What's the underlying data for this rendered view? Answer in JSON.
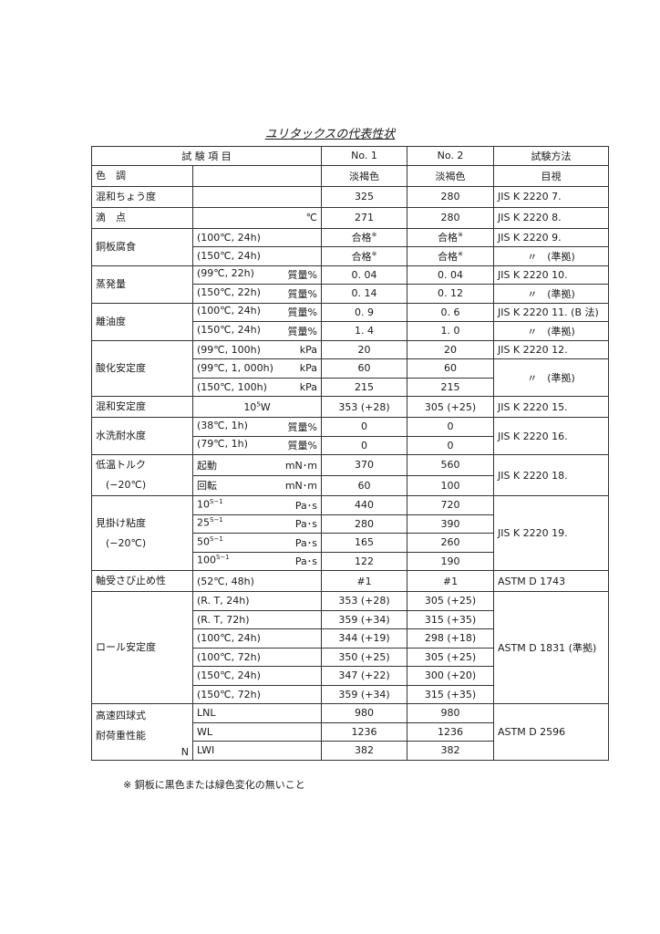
{
  "title": "ユリタックスの代表性状",
  "header": {
    "item": "試 験 項 目",
    "no1": "No. 1",
    "no2": "No. 2",
    "method": "試験方法"
  },
  "groups": [
    {
      "label": [
        "色　調"
      ],
      "rows": [
        {
          "param": "",
          "unit": "",
          "no1": "淡褐色",
          "no2": "淡褐色",
          "method": "目視",
          "method_span": 1,
          "method_align": "c"
        }
      ]
    },
    {
      "label": [
        "混和ちょう度"
      ],
      "rows": [
        {
          "param": "",
          "unit": "",
          "no1": "325",
          "no2": "280",
          "method": "JIS K 2220 7.",
          "method_span": 1
        }
      ]
    },
    {
      "label": [
        "滴　点"
      ],
      "rows": [
        {
          "param": "",
          "unit": "℃",
          "no1": "271",
          "no2": "280",
          "method": "JIS K 2220 8.",
          "method_span": 1
        }
      ]
    },
    {
      "label": [
        "銅板腐食"
      ],
      "rows": [
        {
          "param": "(100℃, 24h)",
          "unit": "",
          "no1": "合格",
          "no1_sup": "※",
          "no2": "合格",
          "no2_sup": "※",
          "method": "JIS K 2220 9.",
          "method_span": 1
        },
        {
          "param": "(150℃, 24h)",
          "unit": "",
          "no1": "合格",
          "no1_sup": "※",
          "no2": "合格",
          "no2_sup": "※",
          "method": "〃　(準拠)",
          "method_span": 1,
          "method_align": "c"
        }
      ]
    },
    {
      "label": [
        "蒸発量"
      ],
      "rows": [
        {
          "param": "(99℃, 22h)",
          "unit": "質量%",
          "no1": "0. 04",
          "no2": "0. 04",
          "method": "JIS K 2220 10.",
          "method_span": 1
        },
        {
          "param": "(150℃, 22h)",
          "unit": "質量%",
          "no1": "0. 14",
          "no2": "0. 12",
          "method": "〃　(準拠)",
          "method_span": 1,
          "method_align": "c"
        }
      ]
    },
    {
      "label": [
        "離油度"
      ],
      "rows": [
        {
          "param": "(100℃, 24h)",
          "unit": "質量%",
          "no1": "0. 9",
          "no2": "0. 6",
          "method": "JIS K 2220 11. (B 法)",
          "method_span": 1
        },
        {
          "param": "(150℃, 24h)",
          "unit": "質量%",
          "no1": "1. 4",
          "no2": "1. 0",
          "method": "〃　(準拠)",
          "method_span": 1,
          "method_align": "c"
        }
      ]
    },
    {
      "label": [
        "酸化安定度"
      ],
      "rows": [
        {
          "param": "(99℃, 100h)",
          "unit": "kPa",
          "no1": "20",
          "no2": "20",
          "method": "JIS K 2220 12.",
          "method_span": 1
        },
        {
          "param": "(99℃, 1, 000h)",
          "unit": "kPa",
          "no1": "60",
          "no2": "60",
          "method": "〃　(準拠)",
          "method_span": 2,
          "method_align": "c"
        },
        {
          "param": "(150℃, 100h)",
          "unit": "kPa",
          "no1": "215",
          "no2": "215",
          "method_span": 0
        }
      ]
    },
    {
      "label": [
        "混和安定度"
      ],
      "rows": [
        {
          "param": "10",
          "param_sup": "5",
          "param_after": "W",
          "param_center": true,
          "unit": "",
          "no1": "353 (+28)",
          "no2": "305 (+25)",
          "method": "JIS K 2220 15.",
          "method_span": 1
        }
      ]
    },
    {
      "label": [
        "水洗耐水度"
      ],
      "rows": [
        {
          "param": "(38℃, 1h)",
          "unit": "質量%",
          "no1": "0",
          "no2": "0",
          "method": "JIS K 2220 16.",
          "method_span": 2
        },
        {
          "param": "(79℃, 1h)",
          "unit": "質量%",
          "no1": "0",
          "no2": "0",
          "method_span": 0
        }
      ]
    },
    {
      "label": [
        "低温トルク",
        "　(−20℃)"
      ],
      "rows": [
        {
          "param": "起動",
          "unit": "mN･m",
          "no1": "370",
          "no2": "560",
          "method": "JIS K 2220 18.",
          "method_span": 2
        },
        {
          "param": "回転",
          "unit": "mN･m",
          "no1": "60",
          "no2": "100",
          "method_span": 0
        }
      ]
    },
    {
      "label": [
        "見掛け粘度",
        "　(−20℃)"
      ],
      "rows": [
        {
          "param": "10",
          "param_sup": "S−1",
          "unit": "Pa･s",
          "no1": "440",
          "no2": "720",
          "method": "JIS K 2220 19.",
          "method_span": 4
        },
        {
          "param": "25",
          "param_sup": "S−1",
          "unit": "Pa･s",
          "no1": "280",
          "no2": "390",
          "method_span": 0
        },
        {
          "param": "50",
          "param_sup": "S−1",
          "unit": "Pa･s",
          "no1": "165",
          "no2": "260",
          "method_span": 0
        },
        {
          "param": "100",
          "param_sup": "S−1",
          "unit": "Pa･s",
          "no1": "122",
          "no2": "190",
          "method_span": 0
        }
      ]
    },
    {
      "label": [
        "軸受さび止め性"
      ],
      "rows": [
        {
          "param": "(52℃, 48h)",
          "unit": "",
          "no1": "#1",
          "no2": "#1",
          "method": "ASTM D 1743",
          "method_span": 1
        }
      ]
    },
    {
      "label": [
        "ロール安定度"
      ],
      "rows": [
        {
          "param": "(R. T, 24h)",
          "unit": "",
          "no1": "353 (+28)",
          "no2": "305 (+25)",
          "method": "ASTM D 1831 (準拠)",
          "method_span": 6
        },
        {
          "param": "(R. T, 72h)",
          "unit": "",
          "no1": "359 (+34)",
          "no2": "315 (+35)",
          "method_span": 0
        },
        {
          "param": "(100℃, 24h)",
          "unit": "",
          "no1": "344 (+19)",
          "no2": "298 (+18)",
          "method_span": 0
        },
        {
          "param": "(100℃, 72h)",
          "unit": "",
          "no1": "350 (+25)",
          "no2": "305 (+25)",
          "method_span": 0
        },
        {
          "param": "(150℃, 24h)",
          "unit": "",
          "no1": "347 (+22)",
          "no2": "300 (+20)",
          "method_span": 0
        },
        {
          "param": "(150℃, 72h)",
          "unit": "",
          "no1": "359 (+34)",
          "no2": "315 (+35)",
          "method_span": 0
        }
      ]
    },
    {
      "label": [
        "高速四球式",
        "耐荷重性能"
      ],
      "label_note": "N",
      "rows": [
        {
          "param": "LNL",
          "unit": "",
          "no1": "980",
          "no2": "980",
          "method": "ASTM D 2596",
          "method_span": 3
        },
        {
          "param": "WL",
          "unit": "",
          "no1": "1236",
          "no2": "1236",
          "method_span": 0
        },
        {
          "param": "LWI",
          "unit": "",
          "no1": "382",
          "no2": "382",
          "method_span": 0
        }
      ]
    }
  ],
  "footnote": "※ 銅板に黒色または緑色変化の無いこと"
}
